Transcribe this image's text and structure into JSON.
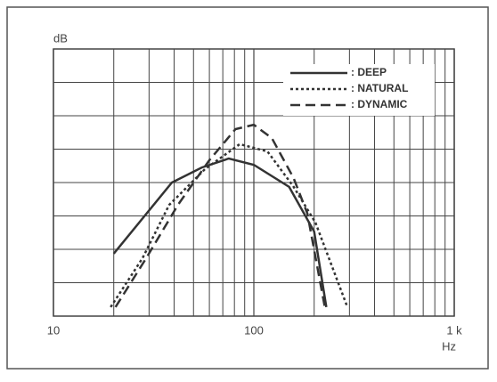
{
  "chart_data": {
    "type": "line",
    "xlabel": "Hz",
    "ylabel": "dB",
    "xscale": "log",
    "xlim": [
      10,
      1000
    ],
    "xticks": [
      10,
      100,
      {
        "value": 1000,
        "label": "1 k"
      }
    ],
    "xgrid": [
      20,
      30,
      40,
      50,
      60,
      70,
      80,
      90,
      200,
      300,
      400,
      500,
      600,
      700,
      800,
      900
    ],
    "ylim": [
      0,
      8
    ],
    "ygrid": [
      1,
      2,
      3,
      4,
      5,
      6,
      7
    ],
    "grid": true,
    "legend": "upper right",
    "series": [
      {
        "name": ": DEEP",
        "color": "#333333",
        "style": "solid",
        "x": [
          20,
          39,
          55,
          75,
          100,
          150,
          200,
          230
        ],
        "values": [
          1.87,
          4.0,
          4.45,
          4.72,
          4.53,
          3.87,
          2.53,
          0.27
        ]
      },
      {
        "name": ": NATURAL",
        "color": "#333333",
        "style": "dotted",
        "x": [
          19.3,
          27.8,
          37.8,
          57,
          85,
          117,
          158,
          203,
          293
        ],
        "values": [
          0.27,
          1.73,
          3.33,
          4.4,
          5.15,
          4.93,
          3.87,
          2.8,
          0.27
        ]
      },
      {
        "name": ": DYNAMIC",
        "color": "#333333",
        "style": "dashed",
        "x": [
          20.4,
          29,
          41.8,
          60,
          81,
          100,
          123,
          158,
          185,
          226
        ],
        "values": [
          0.27,
          1.73,
          3.33,
          4.67,
          5.6,
          5.73,
          5.33,
          4.13,
          3.07,
          0.27
        ]
      }
    ]
  }
}
